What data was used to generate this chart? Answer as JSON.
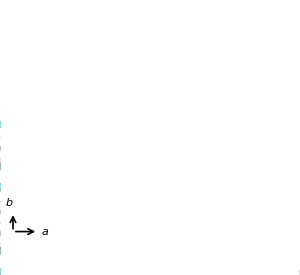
{
  "bg_color": "#ffffff",
  "cyan_color": "#00C8D8",
  "teal_color": "#007070",
  "pink_color": "#E060A0",
  "olive_color": "#706010",
  "maroon_color": "#702040",
  "blue_outline": "#0000CC",
  "sphere_color": "#AAAAAA",
  "sphere_edge": "#606060",
  "figsize": [
    3.0,
    2.75
  ],
  "dpi": 100
}
